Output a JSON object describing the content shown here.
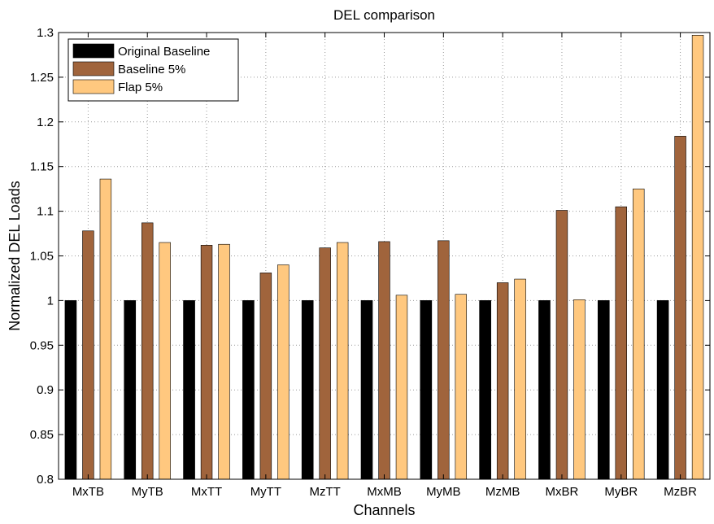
{
  "chart_data": {
    "type": "bar",
    "title": "DEL comparison",
    "xlabel": "Channels",
    "ylabel": "Normalized DEL Loads",
    "categories": [
      "MxTB",
      "MyTB",
      "MxTT",
      "MyTT",
      "MzTT",
      "MxMB",
      "MyMB",
      "MzMB",
      "MxBR",
      "MyBR",
      "MzBR"
    ],
    "series": [
      {
        "name": "Original Baseline",
        "color": "#000000",
        "values": [
          1,
          1,
          1,
          1,
          1,
          1,
          1,
          1,
          1,
          1,
          1
        ]
      },
      {
        "name": "Baseline 5%",
        "color": "#a0643c",
        "values": [
          1.078,
          1.087,
          1.062,
          1.031,
          1.059,
          1.066,
          1.067,
          1.02,
          1.101,
          1.105,
          1.184
        ]
      },
      {
        "name": "Flap 5%",
        "color": "#ffc87f",
        "values": [
          1.136,
          1.065,
          1.063,
          1.04,
          1.065,
          1.006,
          1.007,
          1.024,
          1.001,
          1.125,
          1.297
        ]
      }
    ],
    "ylim": [
      0.8,
      1.3
    ],
    "yticks": [
      0.8,
      0.85,
      0.9,
      0.95,
      1,
      1.05,
      1.1,
      1.15,
      1.2,
      1.25,
      1.3
    ],
    "ytick_labels": [
      "0.8",
      "0.85",
      "0.9",
      "0.95",
      "1",
      "1.05",
      "1.1",
      "1.15",
      "1.2",
      "1.25",
      "1.3"
    ],
    "grid": true,
    "legend_position": "top-left"
  }
}
